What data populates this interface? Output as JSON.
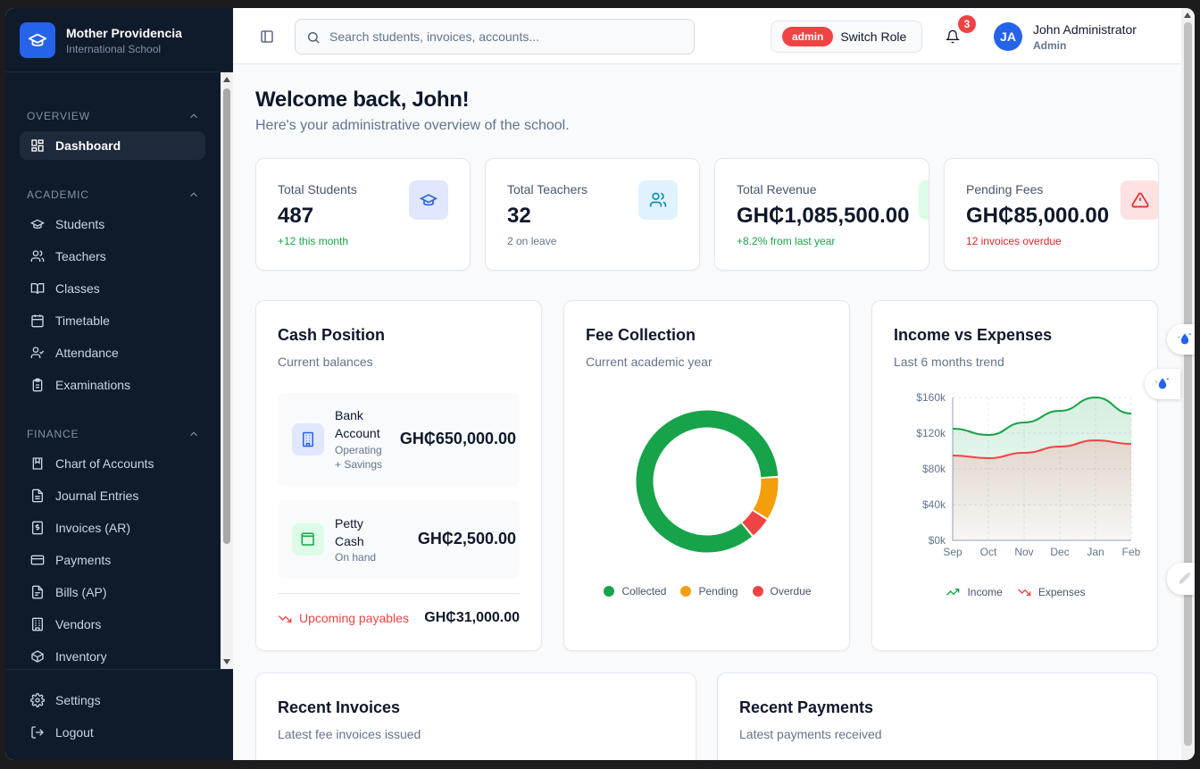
{
  "brand": {
    "name": "Mother Providencia",
    "subtitle": "International School"
  },
  "sidebar": {
    "sections": [
      {
        "title": "OVERVIEW",
        "items": [
          {
            "label": "Dashboard",
            "icon": "layout-grid-icon",
            "active": true
          }
        ]
      },
      {
        "title": "ACADEMIC",
        "items": [
          {
            "label": "Students",
            "icon": "graduation-cap-icon"
          },
          {
            "label": "Teachers",
            "icon": "users-icon"
          },
          {
            "label": "Classes",
            "icon": "book-open-icon"
          },
          {
            "label": "Timetable",
            "icon": "calendar-icon"
          },
          {
            "label": "Attendance",
            "icon": "user-check-icon"
          },
          {
            "label": "Examinations",
            "icon": "clipboard-icon"
          }
        ]
      },
      {
        "title": "FINANCE",
        "items": [
          {
            "label": "Chart of Accounts",
            "icon": "book-icon"
          },
          {
            "label": "Journal Entries",
            "icon": "file-text-icon"
          },
          {
            "label": "Invoices (AR)",
            "icon": "receipt-icon"
          },
          {
            "label": "Payments",
            "icon": "credit-card-icon"
          },
          {
            "label": "Bills (AP)",
            "icon": "file-icon"
          },
          {
            "label": "Vendors",
            "icon": "building-icon"
          },
          {
            "label": "Inventory",
            "icon": "package-icon"
          }
        ]
      }
    ],
    "bottom": [
      {
        "label": "Settings",
        "icon": "gear-icon"
      },
      {
        "label": "Logout",
        "icon": "logout-icon"
      }
    ]
  },
  "topbar": {
    "search_placeholder": "Search students, invoices, accounts...",
    "role_badge": "admin",
    "role_button": "Switch Role",
    "notification_count": "3",
    "user_initials": "JA",
    "user_name": "John Administrator",
    "user_role": "Admin"
  },
  "main": {
    "welcome": "Welcome back, John!",
    "welcome_sub": "Here's your administrative overview of the school.",
    "stats": [
      {
        "label": "Total Students",
        "value": "487",
        "note": "+12 this month",
        "note_color": "#16a34a",
        "icon": "graduation-cap-icon",
        "icon_bg": "#e0e7ff",
        "icon_color": "#2563eb"
      },
      {
        "label": "Total Teachers",
        "value": "32",
        "note": "2 on leave",
        "note_color": "#64748b",
        "icon": "users-icon",
        "icon_bg": "#e0f2fe",
        "icon_color": "#0891b2"
      },
      {
        "label": "Total Revenue",
        "value": "GH₵1,085,500.00",
        "note": "+8.2% from last year",
        "note_color": "#16a34a",
        "icon": "dollar-icon",
        "icon_bg": "#dcfce7",
        "icon_color": "#16a34a"
      },
      {
        "label": "Pending Fees",
        "value": "GH₵85,000.00",
        "note": "12 invoices overdue",
        "note_color": "#dc2626",
        "icon": "alert-triangle-icon",
        "icon_bg": "#fee2e2",
        "icon_color": "#dc2626"
      }
    ],
    "cash": {
      "title": "Cash Position",
      "subtitle": "Current balances",
      "accounts": [
        {
          "name": "Bank Account",
          "desc": "Operating + Savings",
          "value": "GH₵650,000.00",
          "icon": "bank-icon"
        },
        {
          "name": "Petty Cash",
          "desc": "On hand",
          "value": "GH₵2,500.00",
          "icon": "wallet-icon"
        }
      ],
      "payables_label": "Upcoming payables",
      "payables_value": "GH₵31,000.00"
    },
    "fee": {
      "title": "Fee Collection",
      "subtitle": "Current academic year"
    },
    "income": {
      "title": "Income vs Expenses",
      "subtitle": "Last 6 months trend"
    },
    "recent_invoices": {
      "title": "Recent Invoices",
      "subtitle": "Latest fee invoices issued"
    },
    "recent_payments": {
      "title": "Recent Payments",
      "subtitle": "Latest payments received"
    }
  },
  "chart_data": [
    {
      "type": "pie",
      "categories": [
        "Collected",
        "Pending",
        "Overdue"
      ],
      "values": [
        85,
        10,
        5
      ],
      "colors": [
        "#16a34a",
        "#f59e0b",
        "#ef4444"
      ],
      "legend": "bottom"
    },
    {
      "type": "area",
      "x": [
        "Sep",
        "Oct",
        "Nov",
        "Dec",
        "Jan",
        "Feb"
      ],
      "series": [
        {
          "name": "Income",
          "values": [
            125000,
            118000,
            132000,
            145000,
            160000,
            142000
          ],
          "color": "#16a34a"
        },
        {
          "name": "Expenses",
          "values": [
            95000,
            92000,
            98000,
            105000,
            112000,
            108000
          ],
          "color": "#ef4444"
        }
      ],
      "yticks": [
        "$0k",
        "$40k",
        "$80k",
        "$120k",
        "$160k"
      ],
      "ylim": [
        0,
        160000
      ],
      "grid": true,
      "legend": "bottom"
    }
  ]
}
